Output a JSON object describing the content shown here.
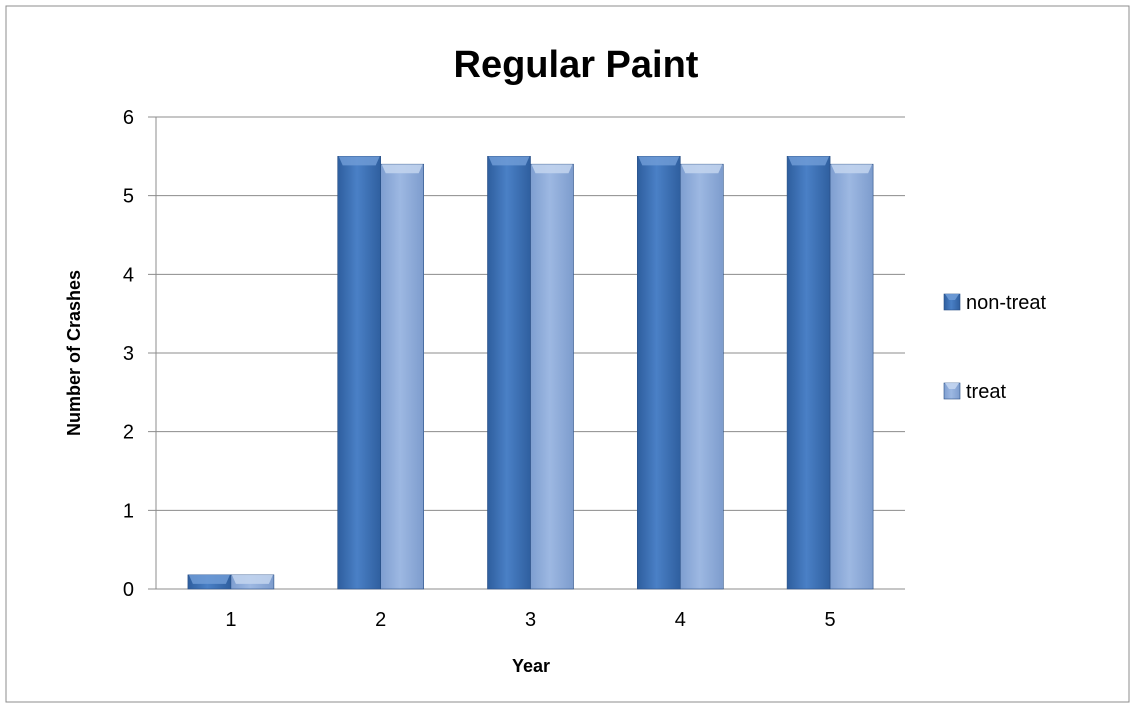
{
  "chart_data": {
    "type": "bar",
    "title": "Regular Paint",
    "xlabel": "Year",
    "ylabel": "Number of Crashes",
    "categories": [
      "1",
      "2",
      "3",
      "4",
      "5"
    ],
    "ylim": [
      0,
      6
    ],
    "yticks": [
      "0",
      "1",
      "2",
      "3",
      "4",
      "5",
      "6"
    ],
    "grid": true,
    "legend_position": "right",
    "series": [
      {
        "name": "non-treat",
        "values": [
          0.18,
          5.5,
          5.5,
          5.5,
          5.5
        ],
        "color": "#3F73B8"
      },
      {
        "name": "treat",
        "values": [
          0.18,
          5.4,
          5.4,
          5.4,
          5.4
        ],
        "color": "#8FAEDC"
      }
    ]
  }
}
